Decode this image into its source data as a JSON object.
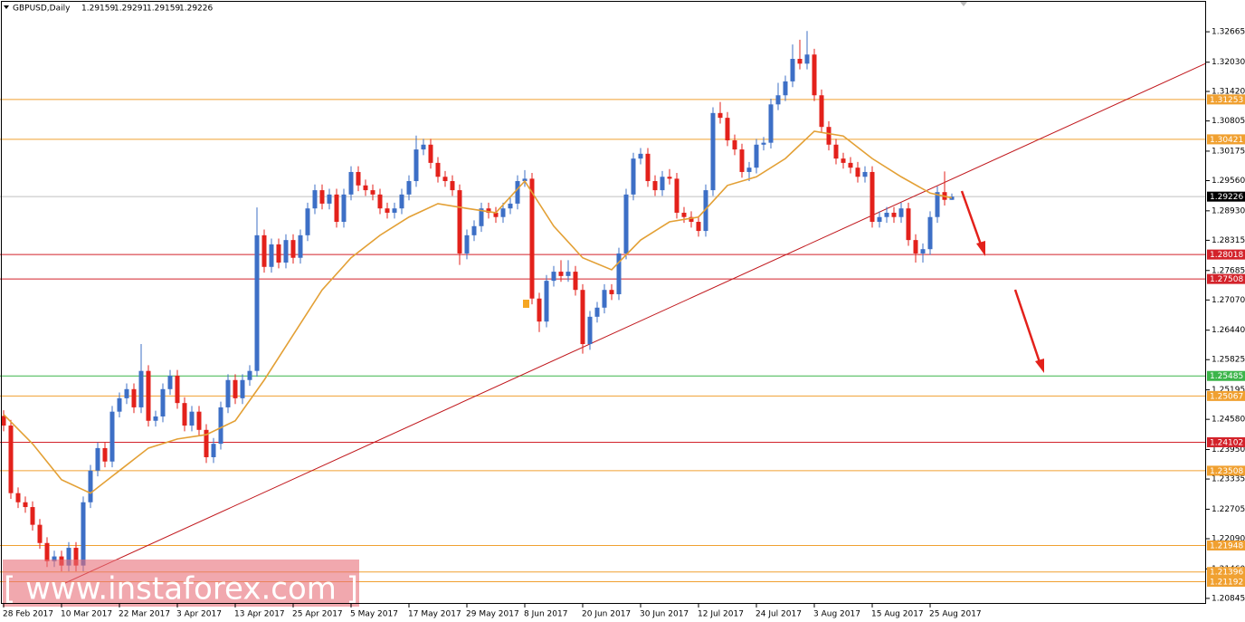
{
  "chart_data": {
    "type": "candlestick",
    "title": "GBPUSD,Daily",
    "watermark": "[ www.instaforex.com ]",
    "categories": [
      "28 Feb 2017",
      null,
      null,
      null,
      null,
      null,
      null,
      null,
      "10 Mar 2017",
      null,
      null,
      null,
      null,
      null,
      null,
      null,
      "22 Mar 2017",
      null,
      null,
      null,
      null,
      null,
      null,
      null,
      "3 Apr 2017",
      null,
      null,
      null,
      null,
      null,
      null,
      null,
      "13 Apr 2017",
      null,
      null,
      null,
      null,
      null,
      null,
      null,
      "25 Apr 2017",
      null,
      null,
      null,
      null,
      null,
      null,
      null,
      "5 May 2017",
      null,
      null,
      null,
      null,
      null,
      null,
      null,
      "17 May 2017",
      null,
      null,
      null,
      null,
      null,
      null,
      null,
      "29 May 2017",
      null,
      null,
      null,
      null,
      null,
      null,
      null,
      "8 Jun 2017",
      null,
      null,
      null,
      null,
      null,
      null,
      null,
      "20 Jun 2017",
      null,
      null,
      null,
      null,
      null,
      null,
      null,
      "30 Jun 2017",
      null,
      null,
      null,
      null,
      null,
      null,
      null,
      "12 Jul 2017",
      null,
      null,
      null,
      null,
      null,
      null,
      null,
      "24 Jul 2017",
      null,
      null,
      null,
      null,
      null,
      null,
      null,
      "3 Aug 2017",
      null,
      null,
      null,
      null,
      null,
      null,
      null,
      "15 Aug 2017",
      null,
      null,
      null,
      null,
      null,
      null,
      null,
      "25 Aug 2017",
      null,
      null,
      null
    ],
    "open": [
      1.2465,
      1.2445,
      1.2304,
      1.2285,
      1.2275,
      1.2238,
      1.22,
      1.2162,
      1.2172,
      1.2153,
      1.219,
      1.2153,
      1.2285,
      1.2351,
      1.2398,
      1.237,
      1.2474,
      1.2502,
      1.2521,
      1.2483,
      1.2559,
      1.2455,
      1.2464,
      1.2521,
      1.2549,
      1.2492,
      1.2445,
      1.2474,
      1.2436,
      1.2379,
      1.2407,
      1.2483,
      1.254,
      1.2502,
      1.254,
      1.2559,
      1.2842,
      1.2776,
      1.2823,
      1.2785,
      1.2832,
      1.2795,
      1.2842,
      1.2898,
      1.2936,
      1.2908,
      1.2927,
      1.287,
      1.2927,
      1.2974,
      1.2946,
      1.2936,
      1.2927,
      1.2898,
      1.2889,
      1.2898,
      1.2927,
      1.2955,
      1.3021,
      1.3031,
      1.2993,
      1.2964,
      1.2955,
      1.2936,
      1.2804,
      1.2842,
      1.2861,
      1.2898,
      1.2889,
      1.288,
      1.2898,
      1.2908,
      1.2955,
      1.296,
      1.271,
      1.2662,
      1.2747,
      1.2766,
      1.2757,
      1.2766,
      1.2728,
      1.2615,
      1.2672,
      1.2691,
      1.2728,
      1.2719,
      1.2804,
      1.2927,
      1.3002,
      1.3012,
      1.2955,
      1.2936,
      1.2964,
      1.296,
      1.2889,
      1.288,
      1.287,
      1.2851,
      1.2936,
      1.3097,
      1.3087,
      1.304,
      1.3021,
      1.2974,
      1.2983,
      1.3031,
      1.3035,
      1.3115,
      1.3134,
      1.3163,
      1.321,
      1.32,
      1.3219,
      1.3134,
      1.3068,
      1.3031,
      1.3002,
      1.2993,
      1.2983,
      1.2964,
      1.2974,
      1.287,
      1.288,
      1.2889,
      1.288,
      1.2898,
      1.2832,
      1.2804,
      1.2813,
      1.288,
      1.2932,
      1.29159
    ],
    "high": [
      1.2477,
      1.2457,
      1.2316,
      1.2297,
      1.2287,
      1.225,
      1.2212,
      1.2184,
      1.2184,
      1.2202,
      1.2202,
      1.2297,
      1.2363,
      1.241,
      1.241,
      1.2486,
      1.2514,
      1.2533,
      1.2533,
      1.2615,
      1.2571,
      1.2476,
      1.2533,
      1.2561,
      1.2561,
      1.2504,
      1.2486,
      1.2486,
      1.2448,
      1.2419,
      1.2495,
      1.2552,
      1.2552,
      1.2552,
      1.2571,
      1.29,
      1.2854,
      1.2835,
      1.2835,
      1.2844,
      1.2844,
      1.2854,
      1.291,
      1.2948,
      1.2948,
      1.2939,
      1.2939,
      1.2939,
      1.2986,
      1.2986,
      1.2958,
      1.2948,
      1.2939,
      1.291,
      1.291,
      1.2939,
      1.2967,
      1.305,
      1.3043,
      1.3043,
      1.3005,
      1.2976,
      1.2967,
      1.2948,
      1.2854,
      1.2873,
      1.291,
      1.291,
      1.2901,
      1.291,
      1.292,
      1.2967,
      1.2978,
      1.2972,
      1.2722,
      1.2759,
      1.2778,
      1.279,
      1.279,
      1.2778,
      1.274,
      1.2684,
      1.2703,
      1.274,
      1.274,
      1.2816,
      1.2939,
      1.3014,
      1.3024,
      1.3024,
      1.2967,
      1.2976,
      1.298,
      1.2972,
      1.2901,
      1.2892,
      1.2882,
      1.2948,
      1.3109,
      1.312,
      1.3099,
      1.3052,
      1.3033,
      1.2995,
      1.3043,
      1.3047,
      1.3127,
      1.316,
      1.3175,
      1.324,
      1.325,
      1.3268,
      1.3231,
      1.3146,
      1.308,
      1.3043,
      1.3014,
      1.3005,
      1.2995,
      1.2986,
      1.2986,
      1.2892,
      1.2901,
      1.2901,
      1.291,
      1.291,
      1.2844,
      1.2825,
      1.2892,
      1.2944,
      1.2975,
      1.29291
    ],
    "low": [
      1.2433,
      1.2292,
      1.2273,
      1.2263,
      1.2226,
      1.2188,
      1.215,
      1.215,
      1.2141,
      1.2141,
      1.2141,
      1.2141,
      1.2273,
      1.2339,
      1.2358,
      1.2358,
      1.2462,
      1.249,
      1.2471,
      1.2471,
      1.2443,
      1.2443,
      1.2452,
      1.2509,
      1.248,
      1.2433,
      1.2433,
      1.2424,
      1.2367,
      1.2367,
      1.2395,
      1.2471,
      1.249,
      1.249,
      1.2528,
      1.2547,
      1.2764,
      1.2764,
      1.2773,
      1.2773,
      1.2783,
      1.2783,
      1.283,
      1.2886,
      1.2896,
      1.2896,
      1.2858,
      1.2858,
      1.2915,
      1.2934,
      1.2924,
      1.2915,
      1.2886,
      1.2877,
      1.2877,
      1.2886,
      1.2915,
      1.2943,
      1.3009,
      1.2981,
      1.2952,
      1.2943,
      1.2924,
      1.278,
      1.2792,
      1.283,
      1.2849,
      1.2877,
      1.2868,
      1.2868,
      1.2886,
      1.2896,
      1.2943,
      1.2698,
      1.264,
      1.265,
      1.2735,
      1.2745,
      1.2745,
      1.2716,
      1.2595,
      1.2603,
      1.266,
      1.2679,
      1.2707,
      1.2707,
      1.2792,
      1.2915,
      1.299,
      1.2943,
      1.2924,
      1.2924,
      1.2948,
      1.2877,
      1.2868,
      1.2858,
      1.2839,
      1.2839,
      1.2924,
      1.3075,
      1.3028,
      1.3009,
      1.2962,
      1.2955,
      1.2971,
      1.3019,
      1.3023,
      1.3103,
      1.3122,
      1.3151,
      1.3188,
      1.3188,
      1.3122,
      1.3056,
      1.3019,
      1.299,
      1.2981,
      1.2971,
      1.2952,
      1.2952,
      1.2858,
      1.2858,
      1.2868,
      1.2868,
      1.2868,
      1.282,
      1.2785,
      1.2785,
      1.2801,
      1.2868,
      1.2904,
      1.29159
    ],
    "close": [
      1.2445,
      1.2304,
      1.2285,
      1.2275,
      1.2238,
      1.22,
      1.2162,
      1.2172,
      1.2153,
      1.219,
      1.2153,
      1.2285,
      1.2351,
      1.2398,
      1.237,
      1.2474,
      1.2502,
      1.2521,
      1.2483,
      1.2559,
      1.2455,
      1.2464,
      1.2521,
      1.2549,
      1.2492,
      1.2445,
      1.2474,
      1.2436,
      1.2379,
      1.2407,
      1.2483,
      1.254,
      1.2502,
      1.254,
      1.2559,
      1.2842,
      1.2776,
      1.2823,
      1.2785,
      1.2832,
      1.2795,
      1.2842,
      1.2898,
      1.2936,
      1.2908,
      1.2927,
      1.287,
      1.2927,
      1.2974,
      1.2946,
      1.2936,
      1.2927,
      1.2898,
      1.2889,
      1.2898,
      1.2927,
      1.2955,
      1.3021,
      1.3031,
      1.2993,
      1.2964,
      1.2955,
      1.2936,
      1.2804,
      1.2842,
      1.2861,
      1.2898,
      1.2889,
      1.288,
      1.2898,
      1.2908,
      1.2955,
      1.296,
      1.271,
      1.2662,
      1.2747,
      1.2766,
      1.2757,
      1.2766,
      1.2728,
      1.2615,
      1.2672,
      1.2691,
      1.2728,
      1.2719,
      1.2804,
      1.2927,
      1.3002,
      1.3012,
      1.2955,
      1.2936,
      1.2964,
      1.296,
      1.2889,
      1.288,
      1.287,
      1.2851,
      1.2936,
      1.3097,
      1.3087,
      1.304,
      1.3021,
      1.2974,
      1.2983,
      1.3031,
      1.3035,
      1.3115,
      1.3134,
      1.3163,
      1.321,
      1.32,
      1.3219,
      1.3134,
      1.3068,
      1.3031,
      1.3002,
      1.2993,
      1.2983,
      1.2964,
      1.2974,
      1.287,
      1.288,
      1.2889,
      1.288,
      1.2898,
      1.2832,
      1.2804,
      1.2813,
      1.288,
      1.2932,
      1.29159,
      1.29226
    ],
    "up_color": "#3d6fc6",
    "down_color": "#e3211b",
    "ma": {
      "color": "#e3a035",
      "x": [
        0,
        4,
        8,
        12,
        16,
        20,
        24,
        28,
        32,
        36,
        40,
        44,
        48,
        52,
        56,
        60,
        64,
        68,
        72,
        76,
        80,
        84,
        88,
        92,
        96,
        100,
        104,
        108,
        112,
        116,
        120,
        124,
        128,
        131
      ],
      "values": [
        1.2468,
        1.2407,
        1.2332,
        1.2304,
        1.2351,
        1.2398,
        1.2417,
        1.2426,
        1.2455,
        1.254,
        1.2634,
        1.2728,
        1.2795,
        1.2842,
        1.288,
        1.2908,
        1.2898,
        1.2889,
        1.2955,
        1.2861,
        1.2795,
        1.277,
        1.2832,
        1.287,
        1.288,
        1.2946,
        1.2964,
        1.3002,
        1.3059,
        1.3049,
        1.3002,
        1.2964,
        1.293,
        1.292
      ]
    },
    "trendline": {
      "color": "#c0161b",
      "x": [
        8,
        166
      ],
      "values": [
        1.2113,
        1.32
      ]
    },
    "levels": [
      {
        "value": 1.31253,
        "color": "#f0a030"
      },
      {
        "value": 1.30421,
        "color": "#f0a030"
      },
      {
        "value": 1.28018,
        "color": "#d3222a"
      },
      {
        "value": 1.27508,
        "color": "#d3222a"
      },
      {
        "value": 1.25485,
        "color": "#3cb54a"
      },
      {
        "value": 1.25067,
        "color": "#f0a030"
      },
      {
        "value": 1.24102,
        "color": "#d3222a"
      },
      {
        "value": 1.23508,
        "color": "#f0a030"
      },
      {
        "value": 1.21948,
        "color": "#f0a030"
      },
      {
        "value": 1.21396,
        "color": "#f0a030"
      },
      {
        "value": 1.21192,
        "color": "#f0a030"
      }
    ],
    "ylim": [
      1.2073,
      1.3329
    ],
    "yticks": [
      1.32665,
      {
        "value": 1.3203,
        "label": "1.32030"
      },
      {
        "value": 1.3142,
        "label": "1.31420"
      },
      1.30805,
      1.30175,
      {
        "value": 1.2956,
        "label": "1.29560"
      },
      {
        "value": 1.2893,
        "label": "1.28930"
      },
      1.28315,
      1.27685,
      {
        "value": 1.2707,
        "label": "1.27070"
      },
      {
        "value": 1.2644,
        "label": "1.26440"
      },
      1.25825,
      1.25195,
      {
        "value": 1.2458,
        "label": "1.24580"
      },
      {
        "value": 1.2395,
        "label": "1.23950"
      },
      1.23335,
      1.22705,
      {
        "value": 1.2209,
        "label": "1.22090"
      },
      {
        "value": 1.2146,
        "label": "1.21460"
      },
      1.20845
    ]
  }
}
